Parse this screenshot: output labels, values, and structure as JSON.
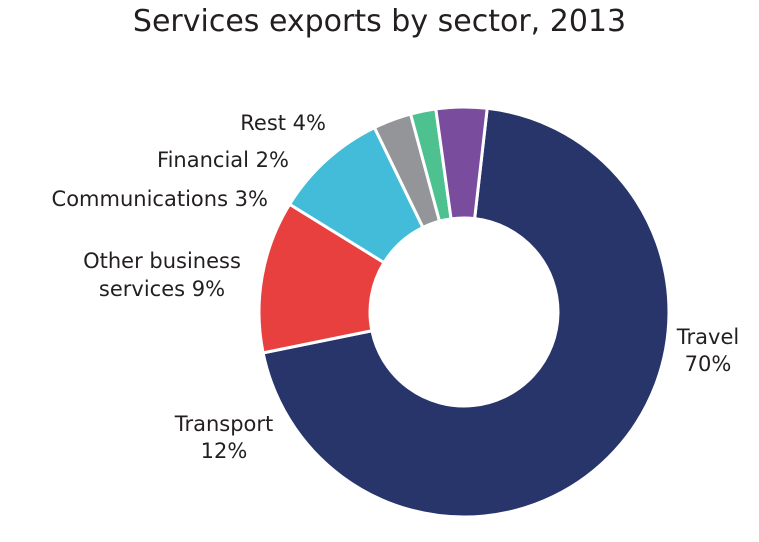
{
  "chart_data": {
    "type": "pie",
    "style": "donut",
    "title": "Services exports by sector, 2013",
    "unit": "%",
    "slices": [
      {
        "label": "Travel",
        "value": 70,
        "value_label": "70%",
        "color": "#28356b"
      },
      {
        "label": "Transport",
        "value": 12,
        "value_label": "12%",
        "color": "#e8403f"
      },
      {
        "label": "Other business services",
        "value": 9,
        "value_label": "9%",
        "color": "#42bcd8"
      },
      {
        "label": "Communications",
        "value": 3,
        "value_label": "3%",
        "color": "#939598"
      },
      {
        "label": "Financial",
        "value": 2,
        "value_label": "2%",
        "color": "#4dc190"
      },
      {
        "label": "Rest",
        "value": 4,
        "value_label": "4%",
        "color": "#7a4c9e"
      }
    ],
    "label_text": {
      "travel": [
        "Travel",
        "70%"
      ],
      "transport": [
        "Transport",
        "12%"
      ],
      "other_business": [
        "Other business",
        "services 9%"
      ],
      "communications": [
        "Communications 3%"
      ],
      "financial": [
        "Financial 2%"
      ],
      "rest": [
        "Rest 4%"
      ]
    }
  }
}
